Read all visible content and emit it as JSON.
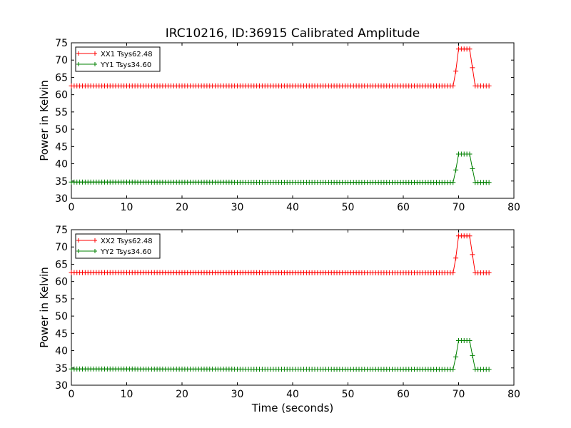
{
  "figure": {
    "title": "IRC10216, ID:36915 Calibrated Amplitude"
  },
  "chart_data": [
    {
      "type": "line",
      "title": "IRC10216, ID:36915 Calibrated Amplitude",
      "xlabel": "",
      "ylabel": "Power in Kelvin",
      "xlim": [
        0,
        80
      ],
      "ylim": [
        30,
        75
      ],
      "xticks": [
        0,
        10,
        20,
        30,
        40,
        50,
        60,
        70,
        80
      ],
      "yticks": [
        30,
        35,
        40,
        45,
        50,
        55,
        60,
        65,
        70,
        75
      ],
      "grid": false,
      "legend_position": "top-left",
      "x": [
        0.0,
        69.0,
        69.5,
        70.0,
        72.0,
        72.5,
        73.0,
        75.5
      ],
      "series": [
        {
          "name": "XX1 Tsys62.48",
          "color": "#ff0000",
          "marker": "+",
          "y": [
            62.5,
            62.5,
            66.8,
            73.2,
            73.2,
            67.8,
            62.5,
            62.5
          ]
        },
        {
          "name": "YY1 Tsys34.60",
          "color": "#008000",
          "marker": "+",
          "y": [
            34.7,
            34.6,
            38.2,
            42.8,
            42.8,
            38.6,
            34.6,
            34.6
          ]
        }
      ]
    },
    {
      "type": "line",
      "title": "",
      "xlabel": "Time (seconds)",
      "ylabel": "Power in Kelvin",
      "xlim": [
        0,
        80
      ],
      "ylim": [
        30,
        75
      ],
      "xticks": [
        0,
        10,
        20,
        30,
        40,
        50,
        60,
        70,
        80
      ],
      "yticks": [
        30,
        35,
        40,
        45,
        50,
        55,
        60,
        65,
        70,
        75
      ],
      "grid": false,
      "legend_position": "top-left",
      "x": [
        0.0,
        69.0,
        69.5,
        70.0,
        72.0,
        72.5,
        73.0,
        75.5
      ],
      "series": [
        {
          "name": "XX2 Tsys62.48",
          "color": "#ff0000",
          "marker": "+",
          "y": [
            62.6,
            62.5,
            66.8,
            73.2,
            73.2,
            67.8,
            62.5,
            62.5
          ]
        },
        {
          "name": "YY2 Tsys34.60",
          "color": "#008000",
          "marker": "+",
          "y": [
            34.7,
            34.6,
            38.2,
            42.9,
            42.9,
            38.6,
            34.6,
            34.6
          ]
        }
      ]
    }
  ]
}
